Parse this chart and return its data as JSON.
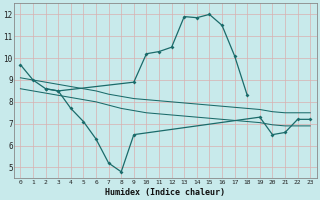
{
  "xlabel": "Humidex (Indice chaleur)",
  "background_color": "#c8eaeb",
  "grid_color": "#e8e8e8",
  "line_color": "#1a6b6a",
  "series1_x": [
    0,
    1,
    2,
    3,
    9,
    10,
    11,
    12,
    13,
    14,
    15,
    16,
    17,
    18
  ],
  "series1_y": [
    9.7,
    9.0,
    8.6,
    8.5,
    8.9,
    10.2,
    10.3,
    10.5,
    11.9,
    11.85,
    12.0,
    11.5,
    10.1,
    8.3
  ],
  "series2_x": [
    2,
    3,
    4,
    5,
    6,
    7,
    8,
    9,
    19,
    20,
    21,
    22,
    23
  ],
  "series2_y": [
    8.6,
    8.5,
    7.7,
    7.1,
    6.3,
    5.2,
    4.8,
    6.5,
    7.3,
    6.5,
    6.6,
    7.2,
    7.2
  ],
  "series3_x": [
    0,
    1,
    2,
    3,
    4,
    5,
    6,
    7,
    8,
    9,
    10,
    11,
    12,
    13,
    14,
    15,
    16,
    17,
    18,
    19,
    20,
    21,
    22,
    23
  ],
  "series3_y": [
    9.1,
    9.0,
    8.9,
    8.8,
    8.7,
    8.6,
    8.5,
    8.35,
    8.25,
    8.15,
    8.1,
    8.05,
    8.0,
    7.95,
    7.9,
    7.85,
    7.8,
    7.75,
    7.7,
    7.65,
    7.55,
    7.5,
    7.5,
    7.5
  ],
  "series4_x": [
    0,
    1,
    2,
    3,
    4,
    5,
    6,
    7,
    8,
    9,
    10,
    11,
    12,
    13,
    14,
    15,
    16,
    17,
    18,
    19,
    20,
    21,
    22,
    23
  ],
  "series4_y": [
    8.6,
    8.5,
    8.4,
    8.3,
    8.2,
    8.1,
    8.0,
    7.85,
    7.7,
    7.6,
    7.5,
    7.45,
    7.4,
    7.35,
    7.3,
    7.25,
    7.2,
    7.15,
    7.1,
    7.05,
    6.95,
    6.9,
    6.9,
    6.9
  ],
  "ylim": [
    4.5,
    12.5
  ],
  "xlim": [
    -0.5,
    23.5
  ],
  "yticks": [
    5,
    6,
    7,
    8,
    9,
    10,
    11,
    12
  ],
  "xticks": [
    0,
    1,
    2,
    3,
    4,
    5,
    6,
    7,
    8,
    9,
    10,
    11,
    12,
    13,
    14,
    15,
    16,
    17,
    18,
    19,
    20,
    21,
    22,
    23
  ]
}
